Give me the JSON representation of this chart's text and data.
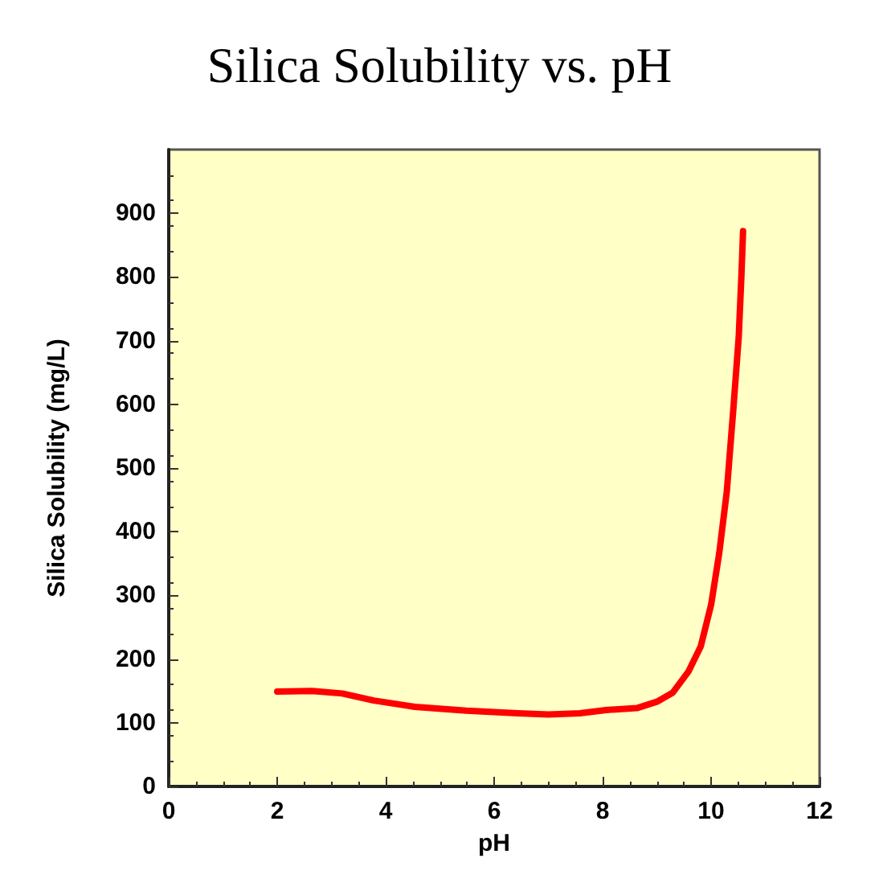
{
  "chart_data": {
    "type": "line",
    "title": "Silica Solubility vs. pH",
    "xlabel": "pH",
    "ylabel": "Silica Solubility (mg/L)",
    "xlim": [
      0,
      12
    ],
    "xticks": [
      0,
      2,
      4,
      6,
      8,
      10,
      12
    ],
    "ylim": [
      0,
      1000
    ],
    "yticks": [
      0,
      100,
      200,
      300,
      400,
      500,
      600,
      700,
      800,
      900
    ],
    "grid": false,
    "marker": "none",
    "line_style": "solid",
    "series": [
      {
        "color": "#ff0000",
        "x": [
          2,
          2.64,
          3.2,
          3.78,
          4.54,
          5.49,
          6.44,
          7.0,
          7.58,
          8.06,
          8.63,
          9.0,
          9.29,
          9.58,
          9.81,
          10.0,
          10.15,
          10.29,
          10.41,
          10.51,
          10.56,
          10.59
        ],
        "values": [
          149,
          150,
          146,
          135,
          125,
          119,
          115,
          113,
          115,
          120,
          123,
          133,
          147,
          180,
          220,
          285,
          366,
          463,
          592,
          706,
          803,
          872
        ]
      }
    ]
  }
}
